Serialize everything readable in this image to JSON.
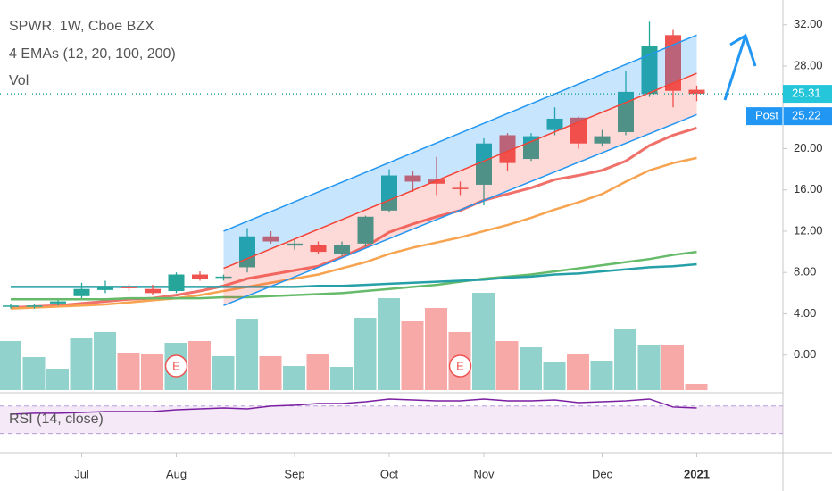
{
  "chart_data": {
    "type": "candlestick",
    "title": "SPWR, 1W, Cboe BZX",
    "indicator_label": "4 EMAs (12, 20, 100, 200)",
    "volume_label": "Vol",
    "rsi_label": "RSI (14, close)",
    "categories": [
      null,
      null,
      null,
      null,
      null,
      null,
      null,
      null,
      null,
      null,
      null,
      null,
      null,
      null,
      null,
      null,
      null,
      null,
      null,
      null,
      null,
      null,
      null,
      null,
      null,
      null,
      null,
      null,
      null,
      null
    ],
    "open": [
      4.7,
      4.7,
      5.0,
      5.7,
      6.3,
      6.6,
      6.4,
      6.2,
      7.8,
      7.5,
      8.5,
      11.5,
      10.6,
      10.7,
      9.8,
      10.8,
      14.0,
      17.4,
      17.0,
      16.2,
      16.5,
      21.3,
      19.0,
      21.8,
      23.0,
      20.5,
      21.6,
      25.3,
      31.0,
      25.7
    ],
    "high": [
      4.9,
      4.9,
      5.3,
      7.0,
      7.2,
      6.9,
      6.8,
      8.0,
      8.1,
      7.8,
      12.3,
      12.0,
      11.3,
      11.0,
      11.0,
      13.5,
      18.0,
      17.8,
      19.2,
      16.8,
      21.0,
      21.5,
      21.5,
      24.0,
      23.1,
      21.8,
      27.5,
      32.3,
      31.5,
      26.1
    ],
    "low": [
      4.5,
      4.5,
      4.8,
      5.5,
      6.0,
      6.2,
      5.8,
      6.0,
      7.2,
      7.2,
      8.0,
      10.8,
      10.2,
      9.8,
      9.6,
      10.5,
      13.8,
      15.8,
      15.5,
      15.5,
      14.5,
      17.8,
      18.8,
      21.3,
      20.0,
      20.2,
      21.3,
      25.0,
      24.0,
      24.6
    ],
    "close": [
      4.8,
      4.8,
      5.2,
      6.4,
      6.6,
      6.5,
      6.0,
      7.8,
      7.4,
      7.6,
      11.5,
      11.0,
      10.8,
      10.0,
      10.7,
      13.4,
      17.4,
      16.8,
      16.6,
      16.1,
      20.5,
      18.6,
      21.2,
      22.9,
      20.5,
      21.2,
      25.5,
      29.9,
      25.6,
      25.31
    ],
    "up_color": "#26a69a",
    "down_color": "#ef5350",
    "volume": [
      55,
      37,
      24,
      58,
      65,
      42,
      41,
      53,
      55,
      38,
      80,
      38,
      27,
      40,
      26,
      81,
      103,
      77,
      92,
      65,
      109,
      55,
      48,
      31,
      40,
      33,
      69,
      50,
      51,
      7
    ],
    "volume_lim": [
      0,
      120
    ],
    "series": [
      {
        "color": "#f0706a",
        "values": [
          4.6,
          4.7,
          4.8,
          5.0,
          5.2,
          5.4,
          5.5,
          5.8,
          6.2,
          6.7,
          7.4,
          7.8,
          8.2,
          8.6,
          9.5,
          10.5,
          11.9,
          12.7,
          13.4,
          14.0,
          15.0,
          15.6,
          16.2,
          17.0,
          17.4,
          17.9,
          18.8,
          20.3,
          21.3,
          22.0
        ]
      },
      {
        "color": "#f7a350",
        "values": [
          4.5,
          4.6,
          4.7,
          4.8,
          4.9,
          5.1,
          5.3,
          5.5,
          5.8,
          6.2,
          6.6,
          7.0,
          7.4,
          7.8,
          8.4,
          9.0,
          9.8,
          10.4,
          10.9,
          11.4,
          12.0,
          12.6,
          13.3,
          14.1,
          14.8,
          15.6,
          16.8,
          17.9,
          18.6,
          19.1
        ]
      },
      {
        "color": "#66bb6a",
        "values": [
          5.4,
          5.4,
          5.4,
          5.4,
          5.4,
          5.5,
          5.5,
          5.5,
          5.5,
          5.6,
          5.6,
          5.7,
          5.8,
          5.9,
          6.0,
          6.2,
          6.4,
          6.6,
          6.8,
          7.1,
          7.4,
          7.6,
          7.8,
          8.1,
          8.4,
          8.7,
          9.0,
          9.3,
          9.7,
          10.0
        ]
      },
      {
        "color": "#26a0a8",
        "values": [
          6.6,
          6.6,
          6.6,
          6.6,
          6.6,
          6.6,
          6.6,
          6.6,
          6.6,
          6.6,
          6.6,
          6.6,
          6.6,
          6.7,
          6.7,
          6.8,
          6.9,
          7.0,
          7.1,
          7.2,
          7.3,
          7.5,
          7.6,
          7.8,
          7.9,
          8.1,
          8.3,
          8.5,
          8.6,
          8.8
        ]
      }
    ],
    "channel": {
      "start": 9,
      "end": 29,
      "upper": [
        12.0,
        31.0
      ],
      "middle": [
        8.4,
        27.3
      ],
      "lower": [
        4.8,
        23.3
      ]
    },
    "earnings": {
      "label": "E",
      "at": [
        7,
        19
      ]
    },
    "rsi": [
      58,
      59.4,
      59.4,
      60.6,
      61.9,
      61.9,
      61.9,
      64.5,
      65.8,
      67.1,
      65.8,
      69.7,
      71,
      73.5,
      73.5,
      76.1,
      80,
      78.7,
      77.4,
      77.4,
      80,
      77.4,
      77.4,
      78.7,
      74.8,
      76.1,
      77.4,
      80,
      68.4,
      67.1
    ],
    "rsi_lim": [
      5,
      89
    ],
    "rsi_levels": [
      70,
      30
    ],
    "ylim": [
      -3.4,
      34.4
    ],
    "yticks": [
      {
        "value": 0,
        "label": "0.00"
      },
      {
        "value": 4,
        "label": "4.00"
      },
      {
        "value": 8,
        "label": "8.00"
      },
      {
        "value": 12,
        "label": "12.00"
      },
      {
        "value": 16,
        "label": "16.00"
      },
      {
        "value": 20,
        "label": "20.00"
      },
      {
        "value": 28,
        "label": "28.00"
      },
      {
        "value": 32,
        "label": "32.00"
      }
    ],
    "xticks": [
      {
        "value": 3,
        "label": "Jul"
      },
      {
        "value": 7,
        "label": "Aug"
      },
      {
        "value": 12,
        "label": "Sep"
      },
      {
        "value": 16,
        "label": "Oct"
      },
      {
        "value": 20,
        "label": "Nov"
      },
      {
        "value": 25,
        "label": "Dec"
      },
      {
        "value": 29,
        "label": "2021"
      }
    ],
    "last_price": {
      "value": 25.31,
      "label": "25.31"
    },
    "post_price": {
      "name": "Post",
      "value": 25.22,
      "label": "25.22"
    }
  }
}
